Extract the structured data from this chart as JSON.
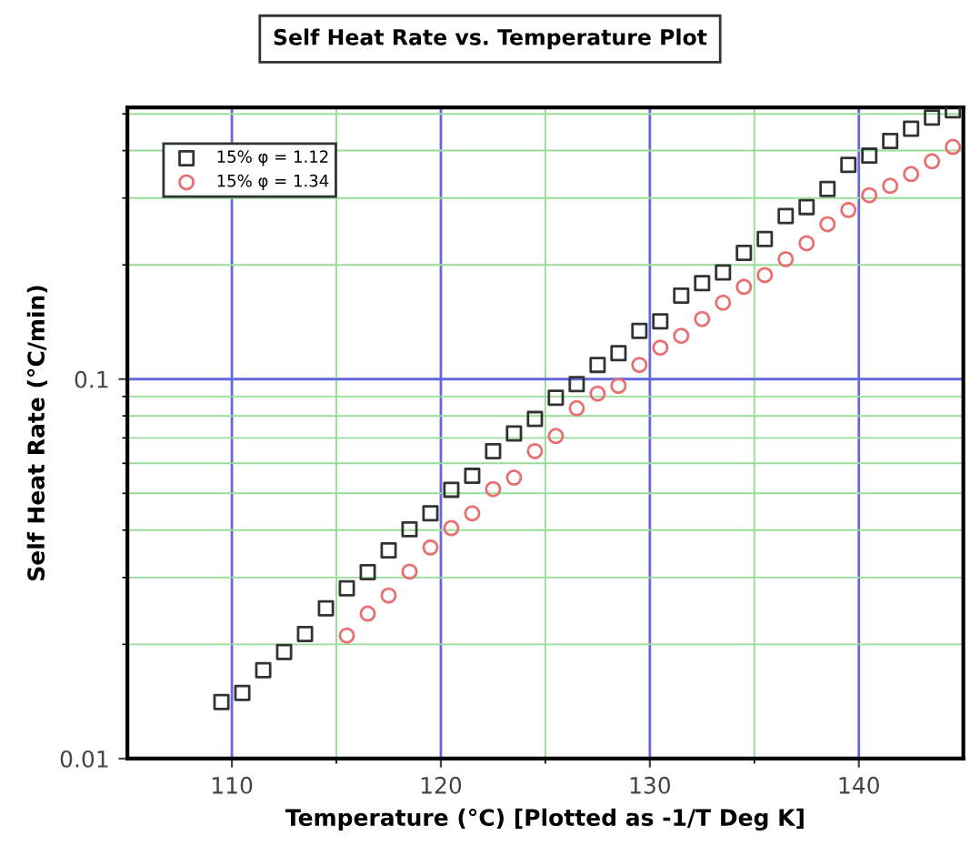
{
  "chart_data": {
    "type": "scatter",
    "title": "Self Heat Rate vs. Temperature Plot",
    "xlabel": "Temperature (°C) [Plotted as -1/T Deg K]",
    "ylabel": "Self Heat Rate (°C/min)",
    "series": [
      {
        "name": "15% φ = 1.12",
        "color": "#333333",
        "marker": "square",
        "x": [
          109.5,
          110.5,
          111.5,
          112.5,
          113.5,
          114.5,
          115.5,
          116.5,
          117.5,
          118.5,
          119.5,
          120.5,
          121.5,
          122.5,
          123.5,
          124.5,
          125.5,
          126.5,
          127.5,
          128.5,
          129.5,
          130.5,
          131.5,
          132.5,
          133.5,
          134.5,
          135.5,
          136.5,
          137.5,
          138.5,
          139.5,
          140.5,
          141.5,
          142.5,
          143.5,
          144.5
        ],
        "values": [
          0.0141,
          0.0149,
          0.0171,
          0.0191,
          0.0213,
          0.0249,
          0.0281,
          0.031,
          0.0354,
          0.0402,
          0.0443,
          0.0511,
          0.0556,
          0.0646,
          0.0719,
          0.0785,
          0.0893,
          0.097,
          0.109,
          0.117,
          0.134,
          0.142,
          0.166,
          0.179,
          0.191,
          0.215,
          0.234,
          0.269,
          0.284,
          0.317,
          0.367,
          0.388,
          0.424,
          0.457,
          0.489,
          0.511
        ]
      },
      {
        "name": "15% φ = 1.34",
        "color": "#e87070",
        "marker": "circle",
        "x": [
          115.5,
          116.5,
          117.5,
          118.5,
          119.5,
          120.5,
          121.5,
          122.5,
          123.5,
          124.5,
          125.5,
          126.5,
          127.5,
          128.5,
          129.5,
          130.5,
          131.5,
          132.5,
          133.5,
          134.5,
          135.5,
          136.5,
          137.5,
          138.5,
          139.5,
          140.5,
          141.5,
          142.5,
          143.5,
          144.5
        ],
        "values": [
          0.0211,
          0.0241,
          0.0269,
          0.0311,
          0.036,
          0.0405,
          0.0443,
          0.0513,
          0.055,
          0.0646,
          0.0708,
          0.0838,
          0.0916,
          0.096,
          0.109,
          0.121,
          0.13,
          0.144,
          0.159,
          0.175,
          0.188,
          0.207,
          0.228,
          0.256,
          0.279,
          0.305,
          0.323,
          0.347,
          0.375,
          0.409
        ]
      }
    ],
    "xlim": [
      105,
      145
    ],
    "xticks": [
      110,
      {
        "value": 115,
        "label": null
      },
      120,
      {
        "value": 125,
        "label": null
      },
      130,
      {
        "value": 135,
        "label": null
      },
      140
    ],
    "log": "y",
    "ylim": [
      0.01,
      0.52
    ],
    "yticks": [
      0.01,
      {
        "value": 0.02,
        "label": null
      },
      {
        "value": 0.03,
        "label": null
      },
      {
        "value": 0.04,
        "label": null
      },
      {
        "value": 0.05,
        "label": null
      },
      {
        "value": 0.06,
        "label": null
      },
      {
        "value": 0.07,
        "label": null
      },
      {
        "value": 0.08,
        "label": null
      },
      {
        "value": 0.09,
        "label": null
      },
      0.1,
      {
        "value": 0.2,
        "label": null
      },
      {
        "value": 0.3,
        "label": null
      },
      {
        "value": 0.4,
        "label": null
      },
      {
        "value": 0.5,
        "label": null
      }
    ],
    "grid": true,
    "legend": "top left"
  }
}
